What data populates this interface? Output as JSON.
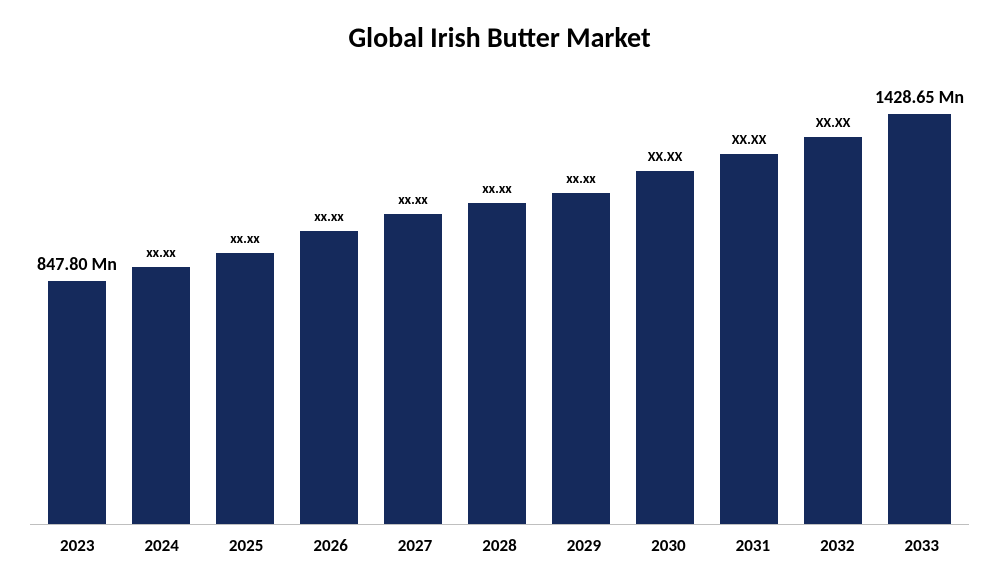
{
  "chart": {
    "type": "bar",
    "title": "Global Irish Butter Market",
    "title_fontsize": 28,
    "title_fontweight": 700,
    "title_color": "#000000",
    "background_color": "#ffffff",
    "axis_line_color": "#bfbfbf",
    "ylim_max": 1600,
    "bar_color": "#152a5c",
    "bar_width_pct": 70,
    "data_label_fontsize_small": 14,
    "data_label_fontsize_large": 18,
    "data_label_fontweight": 700,
    "data_label_color": "#000000",
    "category_label_fontsize": 17,
    "category_label_fontweight": 700,
    "category_label_color": "#000000",
    "categories": [
      "2023",
      "2024",
      "2025",
      "2026",
      "2027",
      "2028",
      "2029",
      "2030",
      "2031",
      "2032",
      "2033"
    ],
    "values": [
      847.8,
      895,
      945,
      1020,
      1080,
      1120,
      1155,
      1230,
      1290,
      1350,
      1428.65
    ],
    "value_labels": [
      "847.80 Mn",
      "xx.xx",
      "xx.xx",
      "xx.xx",
      "xx.xx",
      "xx.xx",
      "xx.xx",
      "XX.XX",
      "XX.XX",
      "XX.XX",
      "1428.65 Mn"
    ],
    "label_is_large": [
      true,
      false,
      false,
      false,
      false,
      false,
      false,
      false,
      false,
      false,
      true
    ]
  }
}
